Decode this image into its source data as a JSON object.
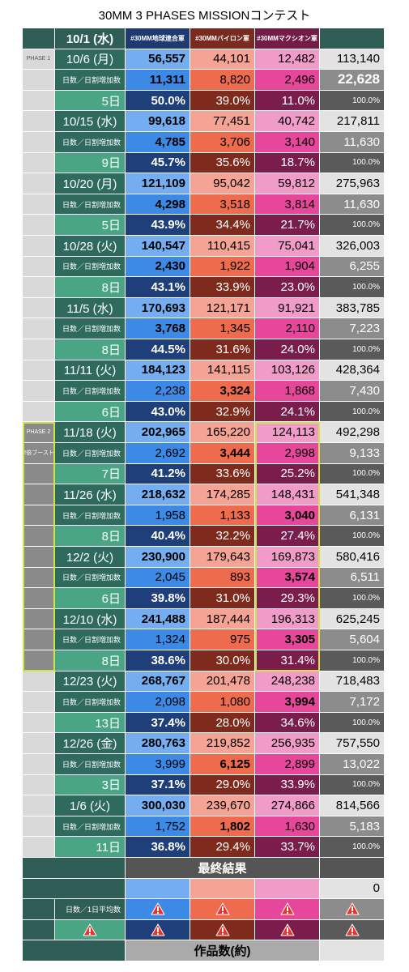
{
  "title": "30MM 3 PHASES MISSIONコンテスト",
  "header": {
    "date": "10/1 (水)",
    "columns": [
      "#30MM地球連合軍",
      "#30MMバイロン軍",
      "#30MMマクシオン軍"
    ]
  },
  "phases": [
    {
      "label": "PHASE 1"
    },
    {
      "label": "PHASE 2",
      "sub": "2倍ブースト"
    }
  ],
  "increment_label": "日数／日割増加数",
  "blocks": [
    {
      "date": "10/6 (月)",
      "totals": [
        "56,557",
        "44,101",
        "12,482",
        "113,140"
      ],
      "increments": [
        "11,311",
        "8,820",
        "2,496",
        "22,628"
      ],
      "days": "5日",
      "shares": [
        "50.0%",
        "39.0%",
        "11.0%",
        "100.0%"
      ],
      "bold": [
        0,
        3
      ]
    },
    {
      "date": "10/15 (水)",
      "totals": [
        "99,618",
        "77,451",
        "40,742",
        "217,811"
      ],
      "increments": [
        "4,785",
        "3,706",
        "3,140",
        "11,630"
      ],
      "days": "9日",
      "shares": [
        "45.7%",
        "35.6%",
        "18.7%",
        "100.0%"
      ],
      "bold": [
        0
      ]
    },
    {
      "date": "10/20 (月)",
      "totals": [
        "121,109",
        "95,042",
        "59,812",
        "275,963"
      ],
      "increments": [
        "4,298",
        "3,518",
        "3,814",
        "11,630"
      ],
      "days": "5日",
      "shares": [
        "43.9%",
        "34.4%",
        "21.7%",
        "100.0%"
      ],
      "bold": [
        0
      ]
    },
    {
      "date": "10/28 (火)",
      "totals": [
        "140,547",
        "110,415",
        "75,041",
        "326,003"
      ],
      "increments": [
        "2,430",
        "1,922",
        "1,904",
        "6,255"
      ],
      "days": "8日",
      "shares": [
        "43.1%",
        "33.9%",
        "23.0%",
        "100.0%"
      ],
      "bold": [
        0
      ]
    },
    {
      "date": "11/5 (水)",
      "totals": [
        "170,693",
        "121,171",
        "91,921",
        "383,785"
      ],
      "increments": [
        "3,768",
        "1,345",
        "2,110",
        "7,223"
      ],
      "days": "8日",
      "shares": [
        "44.5%",
        "31.6%",
        "24.0%",
        "100.0%"
      ],
      "bold": [
        0
      ]
    },
    {
      "date": "11/11 (火)",
      "totals": [
        "184,123",
        "141,115",
        "103,126",
        "428,364"
      ],
      "increments": [
        "2,238",
        "3,324",
        "1,868",
        "7,430"
      ],
      "days": "6日",
      "shares": [
        "43.0%",
        "32.9%",
        "24.1%",
        "100.0%"
      ],
      "bold": [
        1
      ]
    },
    {
      "date": "11/18 (火)",
      "totals": [
        "202,965",
        "165,220",
        "124,113",
        "492,298"
      ],
      "increments": [
        "2,692",
        "3,444",
        "2,998",
        "9,133"
      ],
      "days": "7日",
      "shares": [
        "41.2%",
        "33.6%",
        "25.2%",
        "100.0%"
      ],
      "bold": [
        1
      ]
    },
    {
      "date": "11/26 (水)",
      "totals": [
        "218,632",
        "174,285",
        "148,431",
        "541,348"
      ],
      "increments": [
        "1,958",
        "1,133",
        "3,040",
        "6,131"
      ],
      "days": "8日",
      "shares": [
        "40.4%",
        "32.2%",
        "27.4%",
        "100.0%"
      ],
      "bold": [
        2
      ]
    },
    {
      "date": "12/2 (火)",
      "totals": [
        "230,900",
        "179,643",
        "169,873",
        "580,416"
      ],
      "increments": [
        "2,045",
        "893",
        "3,574",
        "6,511"
      ],
      "days": "6日",
      "shares": [
        "39.8%",
        "31.0%",
        "29.3%",
        "100.0%"
      ],
      "bold": [
        2
      ]
    },
    {
      "date": "12/10 (水)",
      "totals": [
        "241,488",
        "187,444",
        "196,313",
        "625,245"
      ],
      "increments": [
        "1,324",
        "975",
        "3,305",
        "5,604"
      ],
      "days": "8日",
      "shares": [
        "38.6%",
        "30.0%",
        "31.4%",
        "100.0%"
      ],
      "bold": [
        2
      ]
    },
    {
      "date": "12/23 (火)",
      "totals": [
        "268,767",
        "201,478",
        "248,238",
        "718,483"
      ],
      "increments": [
        "2,098",
        "1,080",
        "3,994",
        "7,172"
      ],
      "days": "13日",
      "shares": [
        "37.4%",
        "28.0%",
        "34.6%",
        "100.0%"
      ],
      "bold": [
        2
      ]
    },
    {
      "date": "12/26 (金)",
      "totals": [
        "280,763",
        "219,852",
        "256,935",
        "757,550"
      ],
      "increments": [
        "3,999",
        "6,125",
        "2,899",
        "13,022"
      ],
      "days": "3日",
      "shares": [
        "37.1%",
        "29.0%",
        "33.9%",
        "100.0%"
      ],
      "bold": [
        1
      ]
    },
    {
      "date": "1/6 (火)",
      "totals": [
        "300,030",
        "239,670",
        "274,866",
        "814,566"
      ],
      "increments": [
        "1,752",
        "1,802",
        "1,630",
        "5,183"
      ],
      "days": "11日",
      "shares": [
        "36.8%",
        "29.4%",
        "33.7%",
        "100.0%"
      ],
      "bold": [
        1
      ]
    }
  ],
  "final": {
    "title": "最終結果",
    "value": "0",
    "avg_label": "日数／1日平均数",
    "count_label": "作品数(約)"
  }
}
